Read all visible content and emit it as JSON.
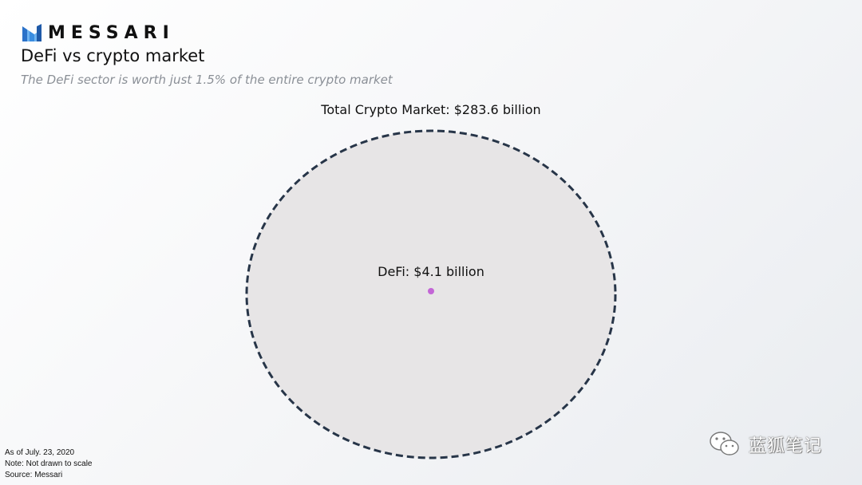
{
  "brand": {
    "name": "MESSARI"
  },
  "chart_data": {
    "type": "bubble",
    "title": "DeFi vs crypto market",
    "subtitle": "The DeFi sector is worth just 1.5% of the entire crypto market",
    "series": [
      {
        "name": "Total Crypto Market",
        "label": "Total Crypto Market: $283.6 billion",
        "value": 283.6,
        "color": "#e7e5e6",
        "outline_color": "#273548",
        "outline_style": "dashed"
      },
      {
        "name": "DeFi",
        "label": "DeFi: $4.1 billion",
        "value": 4.1,
        "color": "#c366d6"
      }
    ],
    "share_percent": 1.5,
    "unit": "billion USD"
  },
  "footer": {
    "lines": [
      "As of July. 23, 2020",
      "Note: Not drawn to scale",
      "Source: Messari"
    ]
  },
  "watermark": {
    "text": "蓝狐笔记"
  }
}
